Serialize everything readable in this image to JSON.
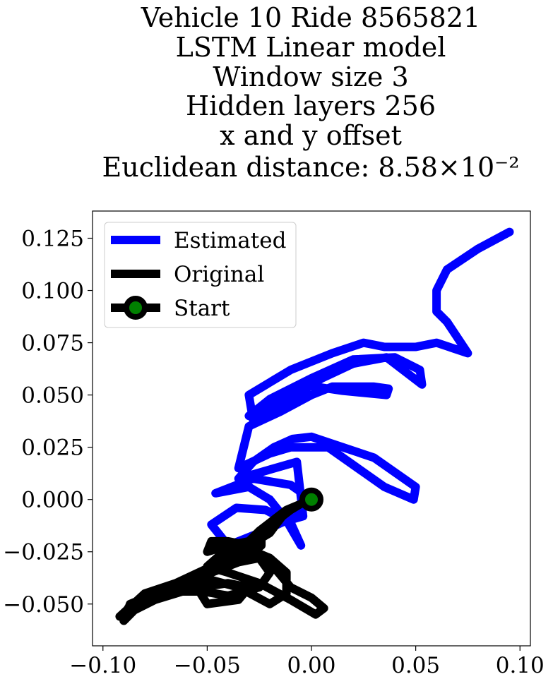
{
  "chart_data": {
    "type": "line",
    "title_lines": [
      "Vehicle 10 Ride 8565821",
      "LSTM Linear model",
      "Window size 3",
      "Hidden layers 256",
      "x and y offset",
      "Euclidean distance: 8.58×10⁻²"
    ],
    "xlabel": "",
    "ylabel": "",
    "xlim": [
      -0.105,
      0.105
    ],
    "ylim": [
      -0.07,
      0.138
    ],
    "xticks": [
      -0.1,
      -0.05,
      0.0,
      0.05,
      0.1
    ],
    "xtick_labels": [
      "−0.10",
      "−0.05",
      "0.00",
      "0.05",
      "0.10"
    ],
    "yticks": [
      -0.05,
      -0.025,
      0.0,
      0.025,
      0.05,
      0.075,
      0.1,
      0.125
    ],
    "ytick_labels": [
      "−0.050",
      "−0.025",
      "0.000",
      "0.025",
      "0.050",
      "0.075",
      "0.100",
      "0.125"
    ],
    "grid": false,
    "legend_position": "top-left",
    "series": [
      {
        "name": "Estimated",
        "color": "#0000ff",
        "x": [
          0.0,
          -0.012,
          -0.025,
          -0.04,
          -0.048,
          -0.036,
          -0.022,
          -0.01,
          -0.005,
          -0.012,
          -0.02,
          -0.03,
          -0.046,
          -0.028,
          -0.01,
          0.0,
          -0.01,
          -0.018,
          -0.004,
          -0.007,
          -0.035,
          -0.028,
          -0.018,
          -0.009,
          0.0,
          0.03,
          0.05,
          0.049,
          0.035,
          0.008,
          -0.01,
          -0.02,
          -0.035,
          -0.03,
          -0.015,
          0.0,
          0.01,
          0.03,
          0.037,
          0.036,
          0.015,
          -0.005,
          -0.018,
          -0.03,
          -0.02,
          0.0,
          0.02,
          0.04,
          0.052,
          0.053,
          0.036,
          0.02,
          0.005,
          -0.015,
          -0.028,
          -0.03,
          -0.01,
          0.01,
          0.025,
          0.03,
          0.035,
          0.05,
          0.06,
          0.075,
          0.065,
          0.06,
          0.06,
          0.065,
          0.08,
          0.095
        ],
        "y": [
          0.0,
          -0.01,
          -0.016,
          -0.022,
          -0.012,
          -0.004,
          -0.005,
          -0.011,
          -0.022,
          -0.01,
          0.0,
          0.006,
          0.003,
          0.01,
          0.007,
          0.0,
          -0.008,
          -0.012,
          -0.008,
          0.018,
          0.01,
          0.018,
          0.025,
          0.029,
          0.03,
          0.02,
          0.006,
          0.0,
          0.006,
          0.025,
          0.025,
          0.022,
          0.015,
          0.035,
          0.042,
          0.05,
          0.054,
          0.054,
          0.053,
          0.05,
          0.052,
          0.055,
          0.046,
          0.04,
          0.048,
          0.058,
          0.067,
          0.068,
          0.062,
          0.055,
          0.068,
          0.065,
          0.058,
          0.045,
          0.038,
          0.05,
          0.062,
          0.07,
          0.075,
          0.074,
          0.073,
          0.073,
          0.075,
          0.07,
          0.085,
          0.09,
          0.1,
          0.11,
          0.12,
          0.128
        ]
      },
      {
        "name": "Original",
        "color": "#000000",
        "x": [
          0.0,
          -0.012,
          -0.025,
          -0.032,
          -0.04,
          -0.05,
          -0.065,
          -0.08,
          -0.092,
          -0.085,
          -0.07,
          -0.055,
          -0.042,
          -0.03,
          -0.02,
          -0.01,
          0.0,
          0.006,
          0.002,
          -0.01,
          -0.025,
          -0.04,
          -0.05,
          -0.042,
          -0.032,
          -0.02,
          -0.012,
          -0.012,
          -0.02,
          -0.035,
          -0.05,
          -0.06,
          -0.078,
          -0.088,
          -0.075,
          -0.06,
          -0.04,
          -0.03,
          -0.035,
          -0.05,
          -0.055,
          -0.048,
          -0.035,
          -0.025,
          -0.02,
          -0.025,
          -0.04,
          -0.052,
          -0.062,
          -0.075,
          -0.085,
          -0.09,
          -0.087,
          -0.07,
          -0.05,
          -0.035,
          -0.028,
          -0.024,
          -0.024,
          -0.03,
          -0.04,
          -0.05,
          -0.048,
          -0.04,
          -0.03,
          -0.02,
          -0.017,
          -0.014,
          -0.01,
          -0.005,
          0.0
        ],
        "y": [
          0.0,
          -0.005,
          -0.015,
          -0.022,
          -0.028,
          -0.033,
          -0.04,
          -0.045,
          -0.056,
          -0.05,
          -0.043,
          -0.038,
          -0.032,
          -0.026,
          -0.03,
          -0.042,
          -0.047,
          -0.052,
          -0.055,
          -0.048,
          -0.04,
          -0.035,
          -0.032,
          -0.025,
          -0.023,
          -0.028,
          -0.035,
          -0.045,
          -0.05,
          -0.042,
          -0.038,
          -0.042,
          -0.048,
          -0.052,
          -0.044,
          -0.043,
          -0.04,
          -0.042,
          -0.048,
          -0.05,
          -0.042,
          -0.035,
          -0.03,
          -0.028,
          -0.035,
          -0.042,
          -0.046,
          -0.044,
          -0.044,
          -0.048,
          -0.053,
          -0.058,
          -0.05,
          -0.043,
          -0.035,
          -0.03,
          -0.025,
          -0.022,
          -0.018,
          -0.02,
          -0.022,
          -0.025,
          -0.02,
          -0.02,
          -0.022,
          -0.016,
          -0.012,
          -0.008,
          -0.005,
          -0.002,
          0.0
        ]
      }
    ],
    "start_point": {
      "name": "Start",
      "x": 0.0,
      "y": 0.0,
      "marker_face_color": "#008000",
      "marker_edge_color": "#000000"
    },
    "legend": [
      "Estimated",
      "Original",
      "Start"
    ]
  }
}
